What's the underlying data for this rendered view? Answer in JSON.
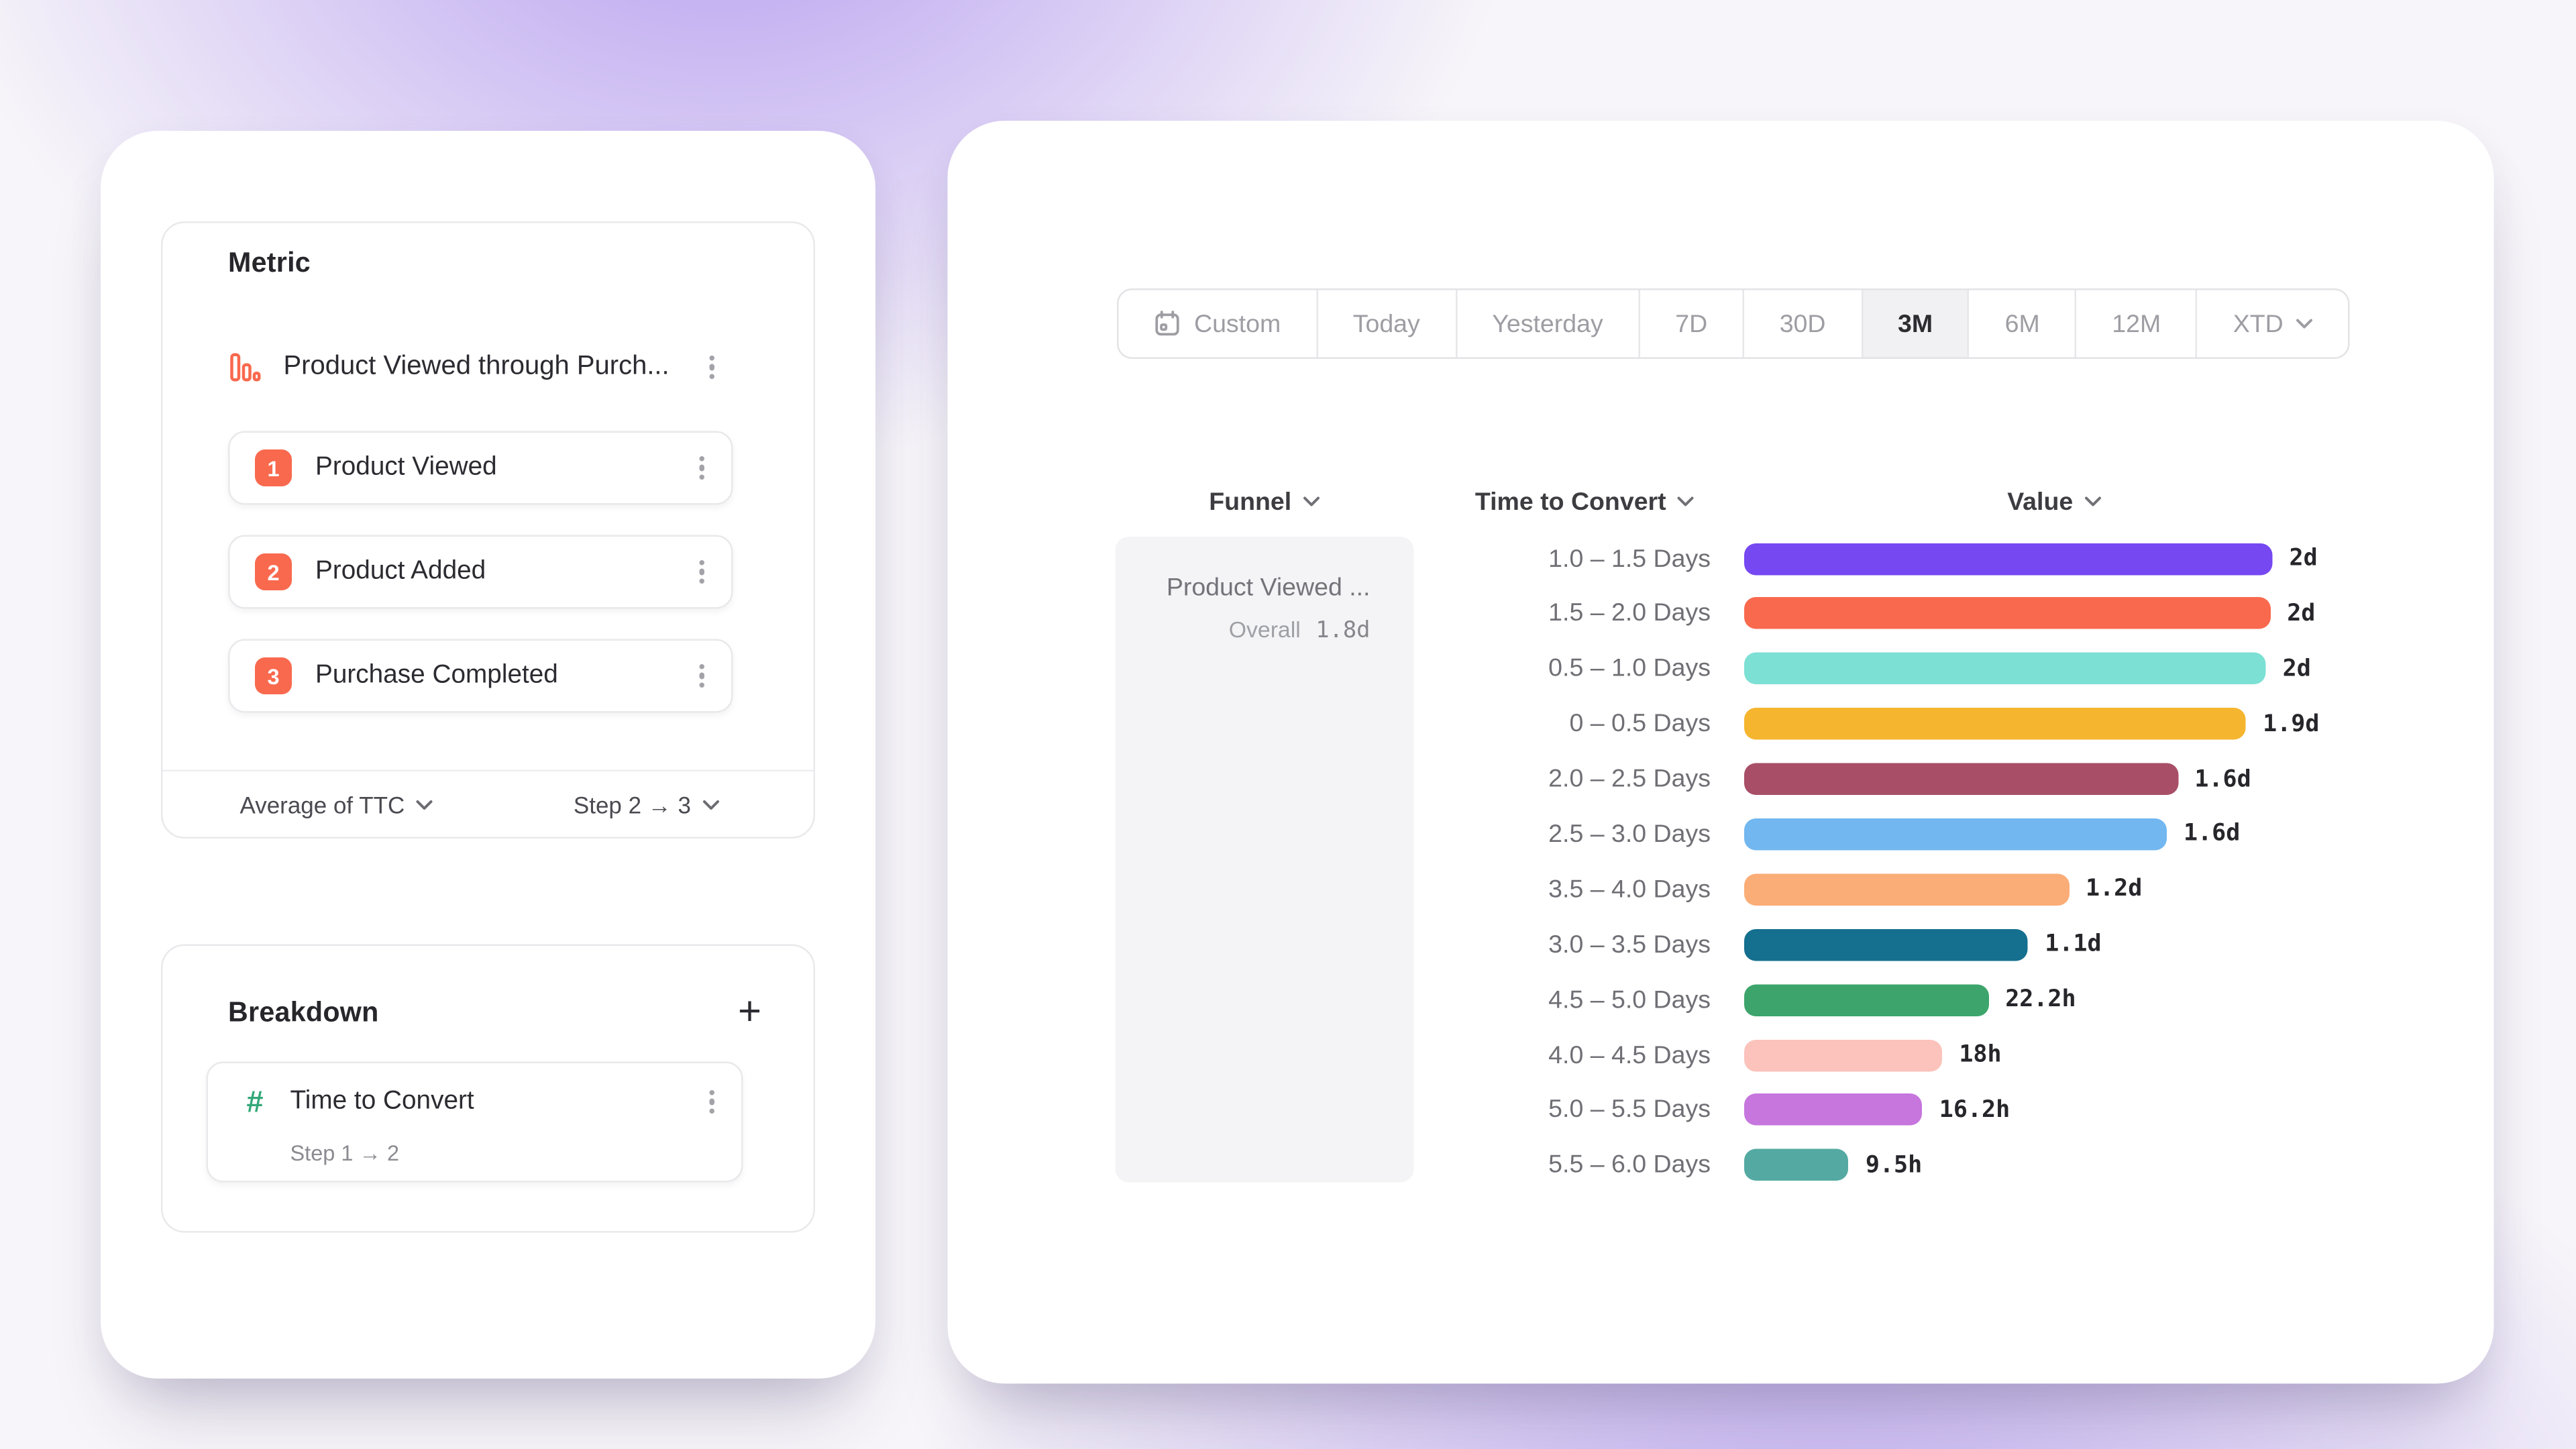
{
  "background": {
    "base": "#f7f5f9",
    "glow_color": "#926ee9"
  },
  "left_panel": {
    "metric": {
      "title": "Metric",
      "funnel_name": "Product Viewed through Purch...",
      "steps": [
        {
          "num": "1",
          "label": "Product Viewed"
        },
        {
          "num": "2",
          "label": "Product Added"
        },
        {
          "num": "3",
          "label": "Purchase Completed"
        }
      ],
      "aggregation": "Average of TTC",
      "step_range": "Step 2 → 3",
      "step_badge_color": "#f9694e"
    },
    "breakdown": {
      "title": "Breakdown",
      "add_label": "+",
      "hash_glyph": "#",
      "hash_color": "#34a878",
      "item_name": "Time to Convert",
      "item_subtitle": "Step 1 → 2"
    }
  },
  "toolbar": {
    "ranges": [
      "Custom",
      "Today",
      "Yesterday",
      "7D",
      "30D",
      "3M",
      "6M",
      "12M",
      "XTD"
    ],
    "selected": "3M"
  },
  "table": {
    "headers": [
      "Funnel",
      "Time to Convert",
      "Value"
    ],
    "funnel_cell": {
      "name": "Product Viewed ...",
      "overall_label": "Overall",
      "overall_value": "1.8d"
    }
  },
  "chart_data": {
    "type": "bar",
    "orientation": "horizontal",
    "categories": [
      "1.0 – 1.5 Days",
      "1.5 – 2.0 Days",
      "0.5 – 1.0 Days",
      "0 – 0.5 Days",
      "2.0 – 2.5 Days",
      "2.5 – 3.0 Days",
      "3.5 – 4.0 Days",
      "3.0 – 3.5 Days",
      "4.5 – 5.0 Days",
      "4.0 – 4.5 Days",
      "5.0 – 5.5 Days",
      "5.5 – 6.0 Days"
    ],
    "values_display": [
      "2d",
      "2d",
      "2d",
      "1.9d",
      "1.6d",
      "1.6d",
      "1.2d",
      "1.1d",
      "22.2h",
      "18h",
      "16.2h",
      "9.5h"
    ],
    "values_hours": [
      48,
      47.8,
      47.4,
      45.6,
      39.4,
      38.4,
      29.5,
      25.8,
      22.2,
      18,
      16.2,
      9.5
    ],
    "bar_colors": [
      "#7648f1",
      "#f9694e",
      "#7de0d4",
      "#f5b52f",
      "#a84e67",
      "#72b7f0",
      "#fbad77",
      "#156f8e",
      "#3da56b",
      "#fbc3bb",
      "#c676dd",
      "#54aaa2"
    ],
    "xlim_hours": [
      0,
      48
    ],
    "grid": false,
    "legend": false
  }
}
